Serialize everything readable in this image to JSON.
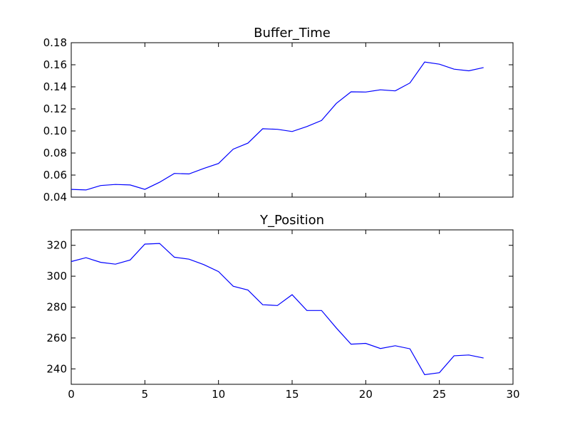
{
  "chart_data": [
    {
      "type": "line",
      "title": "Buffer_Time",
      "xlabel": "",
      "ylabel": "",
      "xlim": [
        0,
        30
      ],
      "ylim": [
        0.04,
        0.18
      ],
      "xticks": [],
      "yticks": [
        "0.04",
        "0.06",
        "0.08",
        "0.10",
        "0.12",
        "0.14",
        "0.16",
        "0.18"
      ],
      "grid": false,
      "line_color": "#0000ff",
      "series": [
        {
          "x": [
            0,
            1,
            2,
            3,
            4,
            5,
            6,
            7,
            8,
            9,
            10,
            11,
            12,
            13,
            14,
            15,
            16,
            17,
            18,
            19,
            20,
            21,
            22,
            23,
            24,
            25,
            26,
            27,
            28
          ],
          "values": [
            0.047,
            0.0465,
            0.0505,
            0.0515,
            0.051,
            0.047,
            0.0535,
            0.0615,
            0.061,
            0.066,
            0.0705,
            0.0835,
            0.089,
            0.102,
            0.1015,
            0.0995,
            0.104,
            0.1095,
            0.125,
            0.1355,
            0.1353,
            0.1373,
            0.1363,
            0.1435,
            0.1625,
            0.1605,
            0.156,
            0.1545,
            0.1575
          ]
        }
      ]
    },
    {
      "type": "line",
      "title": "Y_Position",
      "xlabel": "",
      "ylabel": "",
      "xlim": [
        0,
        30
      ],
      "ylim": [
        230,
        330
      ],
      "xticks": [
        "0",
        "5",
        "10",
        "15",
        "20",
        "25",
        "30"
      ],
      "yticks": [
        "240",
        "260",
        "280",
        "300",
        "320"
      ],
      "grid": false,
      "line_color": "#0000ff",
      "series": [
        {
          "x": [
            0,
            1,
            2,
            3,
            4,
            5,
            6,
            7,
            8,
            9,
            10,
            11,
            12,
            13,
            14,
            15,
            16,
            17,
            18,
            19,
            20,
            21,
            22,
            23,
            24,
            25,
            26,
            27,
            28
          ],
          "values": [
            309.5,
            312,
            309,
            307.8,
            310.5,
            320.8,
            321.2,
            312.3,
            311,
            307.5,
            303,
            293.5,
            291,
            281.5,
            281,
            288,
            277.8,
            277.8,
            266.5,
            256,
            256.5,
            253.2,
            255,
            253,
            236.2,
            237.5,
            248.5,
            249,
            247
          ]
        }
      ]
    }
  ]
}
